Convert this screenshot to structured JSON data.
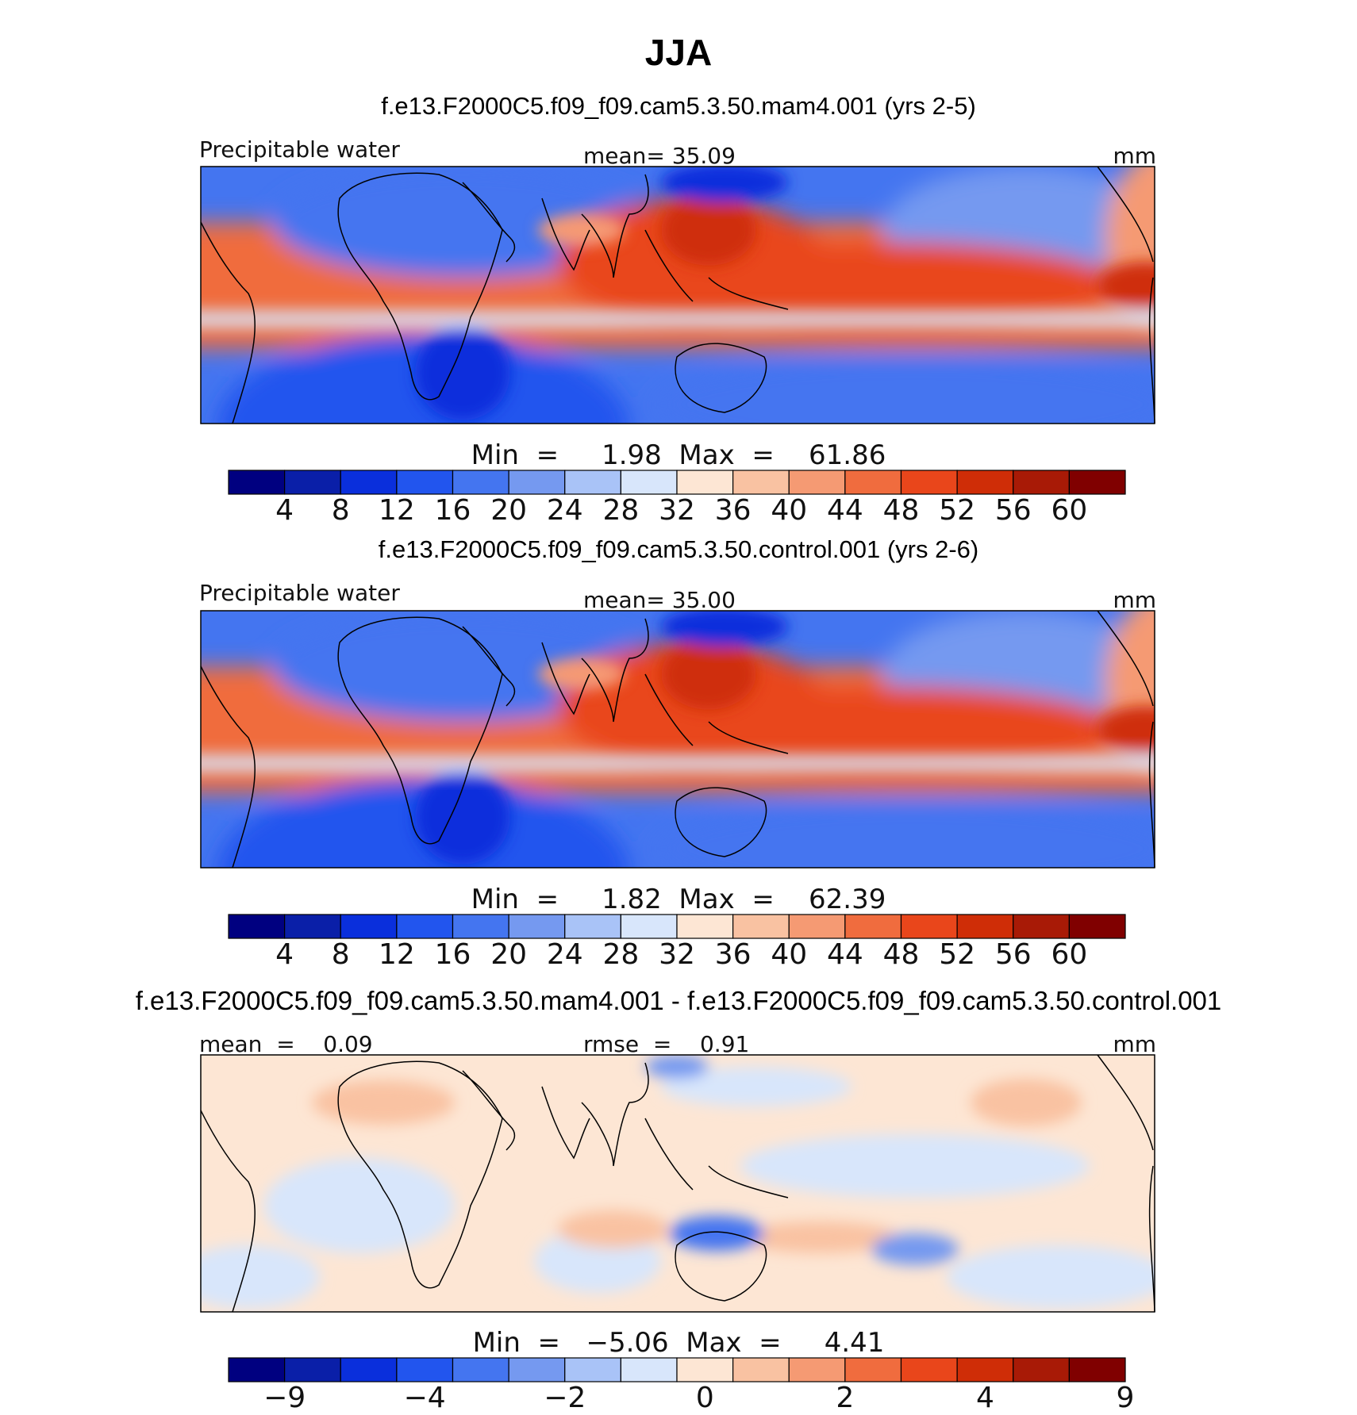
{
  "page_title": "JJA",
  "units": "mm",
  "colors": {
    "abs_levels": [
      "#000080",
      "#0a1fa8",
      "#0a2fdc",
      "#2255ee",
      "#4475f0",
      "#7599f0",
      "#a9c3f7",
      "#d8e6fb",
      "#fde6d4",
      "#f9c2a2",
      "#f59a73",
      "#f06c3e",
      "#e9461b",
      "#cf2d07",
      "#a81a06",
      "#800000"
    ],
    "diff_levels": [
      "#000080",
      "#0a1fa8",
      "#0a2fdc",
      "#2255ee",
      "#4475f0",
      "#7599f0",
      "#a9c3f7",
      "#d8e6fb",
      "#fde6d4",
      "#f9c2a2",
      "#f59a73",
      "#f06c3e",
      "#e9461b",
      "#cf2d07",
      "#a81a06",
      "#800000"
    ],
    "coast": "#000000"
  },
  "panels": [
    {
      "title": "f.e13.F2000C5.f09_f09.cam5.3.50.mam4.001 (yrs 2-5)",
      "left_label": "Precipitable  water",
      "center_label": "mean=   35.09",
      "right_label": "mm",
      "minmax_label": "Min  =     1.98  Max  =    61.86",
      "colorbar_ticks": [
        "4",
        "8",
        "12",
        "16",
        "20",
        "24",
        "28",
        "32",
        "36",
        "40",
        "44",
        "48",
        "52",
        "56",
        "60"
      ]
    },
    {
      "title": "f.e13.F2000C5.f09_f09.cam5.3.50.control.001 (yrs 2-6)",
      "left_label": "Precipitable  water",
      "center_label": "mean=   35.00",
      "right_label": "mm",
      "minmax_label": "Min  =     1.82  Max  =    62.39",
      "colorbar_ticks": [
        "4",
        "8",
        "12",
        "16",
        "20",
        "24",
        "28",
        "32",
        "36",
        "40",
        "44",
        "48",
        "52",
        "56",
        "60"
      ]
    },
    {
      "title": "f.e13.F2000C5.f09_f09.cam5.3.50.mam4.001 - f.e13.F2000C5.f09_f09.cam5.3.50.control.001",
      "left_label": "mean  =    0.09",
      "center_label": "rmse  =    0.91",
      "right_label": "mm",
      "minmax_label": "Min  =   −5.06  Max  =     4.41",
      "colorbar_ticks": [
        "−9",
        "",
        "−4",
        "",
        "−2",
        "",
        "0",
        "",
        "2",
        "",
        "4",
        "",
        "9"
      ]
    }
  ],
  "chart_data": [
    {
      "type": "heatmap",
      "title": "f.e13.F2000C5.f09_f09.cam5.3.50.mam4.001 (yrs 2-5)",
      "variable": "Precipitable  water",
      "units": "mm",
      "mean": 35.09,
      "min": 1.98,
      "max": 61.86,
      "levels": [
        4,
        8,
        12,
        16,
        20,
        24,
        28,
        32,
        36,
        40,
        44,
        48,
        52,
        56,
        60
      ],
      "region": "tropics/subtropics, Atlantic to eastern Pacific",
      "grid": false
    },
    {
      "type": "heatmap",
      "title": "f.e13.F2000C5.f09_f09.cam5.3.50.control.001 (yrs 2-6)",
      "variable": "Precipitable  water",
      "units": "mm",
      "mean": 35.0,
      "min": 1.82,
      "max": 62.39,
      "levels": [
        4,
        8,
        12,
        16,
        20,
        24,
        28,
        32,
        36,
        40,
        44,
        48,
        52,
        56,
        60
      ],
      "grid": false
    },
    {
      "type": "heatmap",
      "title": "f.e13.F2000C5.f09_f09.cam5.3.50.mam4.001 - f.e13.F2000C5.f09_f09.cam5.3.50.control.001",
      "units": "mm",
      "mean": 0.09,
      "rmse": 0.91,
      "min": -5.06,
      "max": 4.41,
      "levels": [
        -9,
        -6,
        -4,
        -3,
        -2,
        -1,
        0,
        1,
        2,
        3,
        4,
        6,
        9
      ],
      "labeled_levels": [
        -9,
        -4,
        -2,
        0,
        2,
        4,
        9
      ],
      "grid": false
    }
  ]
}
